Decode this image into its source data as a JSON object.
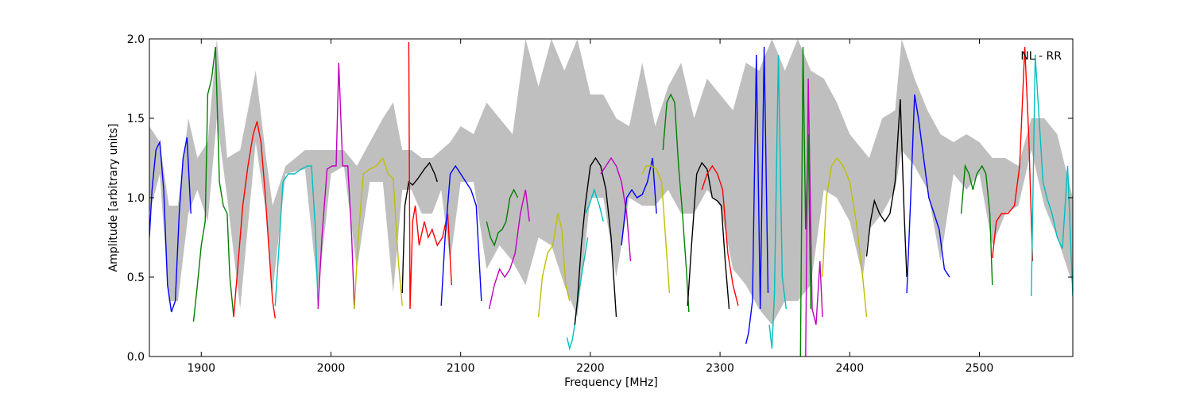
{
  "chart_data": {
    "type": "line",
    "title": "",
    "annotation": "NL - RR",
    "xlabel": "Frequency [MHz]",
    "ylabel": "Amplitude [arbitrary units]",
    "xlim": [
      1860,
      2572
    ],
    "ylim": [
      0.0,
      2.0
    ],
    "x_ticks": [
      1900,
      2000,
      2100,
      2200,
      2300,
      2400,
      2500
    ],
    "y_ticks": [
      0.0,
      0.5,
      1.0,
      1.5,
      2.0
    ],
    "x_tick_labels": [
      "1900",
      "2000",
      "2100",
      "2200",
      "2300",
      "2400",
      "2500"
    ],
    "y_tick_labels": [
      "0.0",
      "0.5",
      "1.0",
      "1.5",
      "2.0"
    ],
    "grid": false,
    "envelope": {
      "color": "#bfbfbf",
      "x": [
        1860,
        1868,
        1875,
        1882,
        1890,
        1897,
        1905,
        1912,
        1920,
        1930,
        1942,
        1950,
        1955,
        1965,
        1980,
        1990,
        2000,
        2010,
        2020,
        2030,
        2040,
        2048,
        2055,
        2062,
        2070,
        2078,
        2085,
        2092,
        2100,
        2110,
        2120,
        2130,
        2140,
        2150,
        2160,
        2170,
        2180,
        2190,
        2200,
        2210,
        2220,
        2230,
        2240,
        2250,
        2260,
        2270,
        2280,
        2290,
        2300,
        2310,
        2320,
        2330,
        2340,
        2350,
        2360,
        2370,
        2380,
        2390,
        2400,
        2410,
        2415,
        2425,
        2435,
        2440,
        2450,
        2460,
        2470,
        2480,
        2490,
        2500,
        2510,
        2520,
        2530,
        2540,
        2550,
        2560,
        2572
      ],
      "lower": [
        0.9,
        1.15,
        0.35,
        0.35,
        0.9,
        1.05,
        0.85,
        1.5,
        1.0,
        0.3,
        1.35,
        0.9,
        0.4,
        1.15,
        1.18,
        0.4,
        1.15,
        1.2,
        0.55,
        1.1,
        1.1,
        0.4,
        1.05,
        1.05,
        0.9,
        0.9,
        1.05,
        0.6,
        1.1,
        1.1,
        0.55,
        0.7,
        0.6,
        0.45,
        0.75,
        0.7,
        0.45,
        0.25,
        1.0,
        1.0,
        0.5,
        1.0,
        0.95,
        0.95,
        1.05,
        0.9,
        0.9,
        1.05,
        0.95,
        0.55,
        0.45,
        0.3,
        0.2,
        0.35,
        0.35,
        0.45,
        1.05,
        1.0,
        0.85,
        0.5,
        0.8,
        0.9,
        1.05,
        1.3,
        1.2,
        1.05,
        0.6,
        1.15,
        1.05,
        1.15,
        0.7,
        0.9,
        0.95,
        1.3,
        0.95,
        0.75,
        0.45
      ],
      "upper": [
        1.45,
        1.35,
        0.95,
        0.95,
        1.5,
        1.25,
        1.35,
        2.0,
        1.25,
        1.3,
        1.8,
        1.25,
        0.95,
        1.2,
        1.3,
        1.3,
        1.3,
        1.3,
        1.2,
        1.35,
        1.5,
        1.6,
        1.3,
        1.3,
        1.25,
        1.25,
        1.3,
        1.35,
        1.45,
        1.4,
        1.6,
        1.5,
        1.4,
        2.0,
        1.7,
        2.0,
        1.8,
        2.0,
        1.65,
        1.65,
        1.5,
        1.45,
        1.85,
        1.45,
        1.7,
        1.85,
        1.5,
        1.75,
        1.65,
        1.55,
        1.85,
        1.8,
        2.0,
        1.8,
        2.0,
        1.8,
        1.75,
        1.6,
        1.4,
        1.3,
        1.25,
        1.5,
        1.55,
        2.0,
        1.75,
        1.55,
        1.4,
        1.35,
        1.4,
        1.35,
        1.25,
        1.25,
        1.2,
        1.5,
        1.5,
        1.4,
        1.0
      ]
    },
    "series": [
      {
        "color": "#0000ff",
        "x": [
          1860,
          1862,
          1865,
          1868,
          1871,
          1874,
          1877,
          1880,
          1883,
          1886,
          1889,
          1892
        ],
        "y": [
          0.75,
          1.05,
          1.3,
          1.35,
          1.05,
          0.45,
          0.28,
          0.35,
          0.9,
          1.25,
          1.38,
          0.9
        ]
      },
      {
        "color": "#008000",
        "x": [
          1894,
          1897,
          1900,
          1903,
          1905,
          1908,
          1911,
          1914,
          1917,
          1920,
          1922,
          1925
        ],
        "y": [
          0.22,
          0.45,
          0.7,
          0.85,
          1.65,
          1.75,
          1.95,
          1.1,
          0.95,
          0.9,
          0.5,
          0.25
        ]
      },
      {
        "color": "#ff0000",
        "x": [
          1925,
          1928,
          1932,
          1936,
          1940,
          1943,
          1946,
          1949,
          1952,
          1955,
          1957
        ],
        "y": [
          0.25,
          0.55,
          0.95,
          1.2,
          1.4,
          1.48,
          1.35,
          1.05,
          0.7,
          0.35,
          0.24
        ]
      },
      {
        "color": "#00bfbf",
        "x": [
          1957,
          1960,
          1963,
          1967,
          1972,
          1977,
          1982,
          1985,
          1988,
          1990
        ],
        "y": [
          0.32,
          0.7,
          1.1,
          1.15,
          1.15,
          1.18,
          1.2,
          1.2,
          0.8,
          0.32
        ]
      },
      {
        "color": "#bf00bf",
        "x": [
          1990,
          1993,
          1997,
          2001,
          2004,
          2006,
          2009,
          2013,
          2016,
          2018
        ],
        "y": [
          0.3,
          0.75,
          1.18,
          1.2,
          1.2,
          1.85,
          1.2,
          1.2,
          0.75,
          0.3
        ]
      },
      {
        "color": "#bfbf00",
        "x": [
          2018,
          2021,
          2025,
          2030,
          2035,
          2040,
          2044,
          2048,
          2052,
          2055
        ],
        "y": [
          0.3,
          0.75,
          1.15,
          1.18,
          1.2,
          1.25,
          1.15,
          1.12,
          0.6,
          0.32
        ]
      },
      {
        "color": "#000000",
        "x": [
          2055,
          2057,
          2060,
          2063,
          2067,
          2072,
          2076,
          2080,
          2082
        ],
        "y": [
          0.4,
          0.95,
          1.1,
          1.08,
          1.12,
          1.18,
          1.22,
          1.15,
          1.1
        ]
      },
      {
        "color": "#ff0000",
        "x": [
          2060,
          2061,
          2063,
          2065,
          2068,
          2072,
          2075,
          2078,
          2082,
          2086,
          2090,
          2093
        ],
        "y": [
          1.98,
          0.3,
          0.85,
          0.95,
          0.7,
          0.85,
          0.75,
          0.8,
          0.7,
          0.75,
          0.9,
          0.45
        ]
      },
      {
        "color": "#0000ff",
        "x": [
          2085,
          2088,
          2092,
          2096,
          2100,
          2104,
          2108,
          2112,
          2116
        ],
        "y": [
          0.32,
          0.75,
          1.15,
          1.2,
          1.15,
          1.1,
          1.05,
          0.95,
          0.35
        ]
      },
      {
        "color": "#008000",
        "x": [
          2120,
          2123,
          2126,
          2129,
          2132,
          2135,
          2138,
          2141,
          2144
        ],
        "y": [
          0.85,
          0.75,
          0.7,
          0.78,
          0.8,
          0.85,
          1.0,
          1.05,
          1.0
        ]
      },
      {
        "color": "#bf00bf",
        "x": [
          2122,
          2126,
          2130,
          2134,
          2138,
          2142,
          2146,
          2150,
          2153
        ],
        "y": [
          0.3,
          0.45,
          0.55,
          0.5,
          0.55,
          0.65,
          0.9,
          1.05,
          0.85
        ]
      },
      {
        "color": "#bfbf00",
        "x": [
          2160,
          2163,
          2167,
          2171,
          2175,
          2178,
          2181,
          2184
        ],
        "y": [
          0.25,
          0.5,
          0.65,
          0.7,
          0.9,
          0.8,
          0.45,
          0.35
        ]
      },
      {
        "color": "#00bfbf",
        "x": [
          2182,
          2184,
          2186,
          2188,
          2190,
          2193,
          2196,
          2198
        ],
        "y": [
          0.12,
          0.05,
          0.1,
          0.2,
          0.35,
          0.5,
          0.65,
          0.75
        ]
      },
      {
        "color": "#000000",
        "x": [
          2188,
          2190,
          2193,
          2196,
          2200,
          2204,
          2208,
          2212,
          2216,
          2220
        ],
        "y": [
          0.2,
          0.35,
          0.7,
          0.95,
          1.2,
          1.25,
          1.2,
          1.05,
          0.75,
          0.25
        ]
      },
      {
        "color": "#00bfbf",
        "x": [
          2196,
          2199,
          2203,
          2207,
          2210
        ],
        "y": [
          0.9,
          0.95,
          1.05,
          0.95,
          0.85
        ]
      },
      {
        "color": "#bf00bf",
        "x": [
          2208,
          2212,
          2216,
          2220,
          2224,
          2228,
          2231
        ],
        "y": [
          1.15,
          1.2,
          1.25,
          1.2,
          1.1,
          0.9,
          0.6
        ]
      },
      {
        "color": "#0000ff",
        "x": [
          2224,
          2228,
          2232,
          2236,
          2240,
          2244,
          2248,
          2251
        ],
        "y": [
          0.7,
          1.0,
          1.05,
          1.0,
          1.02,
          1.1,
          1.25,
          0.9
        ]
      },
      {
        "color": "#bfbf00",
        "x": [
          2240,
          2243,
          2247,
          2251,
          2255,
          2258,
          2261
        ],
        "y": [
          1.15,
          1.2,
          1.2,
          1.18,
          1.1,
          0.75,
          0.4
        ]
      },
      {
        "color": "#008000",
        "x": [
          2256,
          2259,
          2262,
          2265,
          2268,
          2271,
          2274,
          2276
        ],
        "y": [
          1.3,
          1.6,
          1.65,
          1.6,
          1.2,
          0.9,
          0.55,
          0.28
        ]
      },
      {
        "color": "#000000",
        "x": [
          2275,
          2278,
          2282,
          2286,
          2290,
          2294,
          2298,
          2301,
          2304,
          2307
        ],
        "y": [
          0.32,
          0.7,
          1.15,
          1.22,
          1.18,
          1.0,
          0.98,
          0.95,
          0.6,
          0.3
        ]
      },
      {
        "color": "#ff0000",
        "x": [
          2286,
          2290,
          2294,
          2298,
          2302,
          2306,
          2310,
          2314
        ],
        "y": [
          1.05,
          1.15,
          1.2,
          1.15,
          1.05,
          0.65,
          0.45,
          0.32
        ]
      },
      {
        "color": "#0000ff",
        "x": [
          2320,
          2322,
          2325,
          2328,
          2331,
          2334,
          2337
        ],
        "y": [
          0.08,
          0.15,
          0.35,
          1.9,
          0.3,
          1.95,
          0.4
        ]
      },
      {
        "color": "#00bfbf",
        "x": [
          2338,
          2340,
          2342,
          2345,
          2348,
          2351
        ],
        "y": [
          0.2,
          0.05,
          0.4,
          1.9,
          0.5,
          0.3
        ]
      },
      {
        "color": "#008000",
        "x": [
          2362,
          2364,
          2366,
          2368,
          2370
        ],
        "y": [
          0.0,
          1.95,
          0.8,
          1.4,
          0.3
        ]
      },
      {
        "color": "#bf00bf",
        "x": [
          2366,
          2368,
          2371,
          2374,
          2377,
          2379
        ],
        "y": [
          0.0,
          1.75,
          0.3,
          0.2,
          0.6,
          0.25
        ]
      },
      {
        "color": "#bfbf00",
        "x": [
          2379,
          2382,
          2386,
          2390,
          2395,
          2400,
          2405,
          2410,
          2413
        ],
        "y": [
          0.5,
          1.0,
          1.2,
          1.25,
          1.2,
          1.1,
          0.85,
          0.5,
          0.25
        ]
      },
      {
        "color": "#000000",
        "x": [
          2413,
          2416,
          2419,
          2423,
          2427,
          2431,
          2435,
          2439,
          2442,
          2444
        ],
        "y": [
          0.63,
          0.85,
          0.98,
          0.9,
          0.85,
          0.9,
          1.1,
          1.62,
          0.9,
          0.5
        ]
      },
      {
        "color": "#0000ff",
        "x": [
          2444,
          2447,
          2450,
          2453,
          2457,
          2461,
          2465,
          2469,
          2473,
          2477
        ],
        "y": [
          0.4,
          1.0,
          1.65,
          1.5,
          1.25,
          1.0,
          0.9,
          0.8,
          0.55,
          0.5
        ]
      },
      {
        "color": "#008000",
        "x": [
          2486,
          2489,
          2492,
          2495,
          2498,
          2502,
          2505,
          2508,
          2510
        ],
        "y": [
          0.9,
          1.2,
          1.15,
          1.05,
          1.15,
          1.2,
          1.15,
          0.9,
          0.45
        ]
      },
      {
        "color": "#ff0000",
        "x": [
          2510,
          2513,
          2517,
          2522,
          2527,
          2531,
          2535,
          2538,
          2541
        ],
        "y": [
          0.62,
          0.85,
          0.9,
          0.9,
          0.95,
          1.2,
          1.95,
          1.4,
          0.6
        ]
      },
      {
        "color": "#00bfbf",
        "x": [
          2540,
          2543,
          2546,
          2549,
          2552,
          2556,
          2560,
          2564,
          2568,
          2572
        ],
        "y": [
          0.38,
          1.9,
          1.5,
          1.1,
          1.0,
          0.9,
          0.75,
          0.68,
          1.2,
          0.38
        ]
      }
    ]
  }
}
